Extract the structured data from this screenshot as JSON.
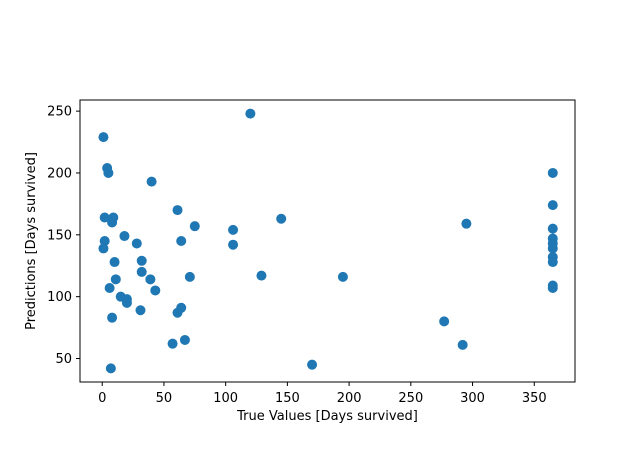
{
  "chart_data": {
    "type": "scatter",
    "xlabel": "True Values [Days survived]",
    "ylabel": "Predictions [Days survived]",
    "xlim": [
      -18,
      383
    ],
    "ylim": [
      31,
      259
    ],
    "xticks": [
      0,
      50,
      100,
      150,
      200,
      250,
      300,
      350
    ],
    "yticks": [
      50,
      100,
      150,
      200,
      250
    ],
    "color": "#1f77b4",
    "points": [
      {
        "x": 1,
        "y": 229
      },
      {
        "x": 4,
        "y": 204
      },
      {
        "x": 5,
        "y": 200
      },
      {
        "x": 2,
        "y": 164
      },
      {
        "x": 8,
        "y": 160
      },
      {
        "x": 9,
        "y": 164
      },
      {
        "x": 2,
        "y": 145
      },
      {
        "x": 1,
        "y": 139
      },
      {
        "x": 10,
        "y": 128
      },
      {
        "x": 11,
        "y": 114
      },
      {
        "x": 6,
        "y": 107
      },
      {
        "x": 15,
        "y": 100
      },
      {
        "x": 20,
        "y": 98
      },
      {
        "x": 20,
        "y": 95
      },
      {
        "x": 8,
        "y": 83
      },
      {
        "x": 7,
        "y": 42
      },
      {
        "x": 18,
        "y": 149
      },
      {
        "x": 28,
        "y": 143
      },
      {
        "x": 32,
        "y": 129
      },
      {
        "x": 32,
        "y": 120
      },
      {
        "x": 39,
        "y": 114
      },
      {
        "x": 43,
        "y": 105
      },
      {
        "x": 31,
        "y": 89
      },
      {
        "x": 40,
        "y": 193
      },
      {
        "x": 61,
        "y": 170
      },
      {
        "x": 64,
        "y": 145
      },
      {
        "x": 75,
        "y": 157
      },
      {
        "x": 71,
        "y": 116
      },
      {
        "x": 64,
        "y": 91
      },
      {
        "x": 61,
        "y": 87
      },
      {
        "x": 57,
        "y": 62
      },
      {
        "x": 67,
        "y": 65
      },
      {
        "x": 120,
        "y": 248
      },
      {
        "x": 106,
        "y": 154
      },
      {
        "x": 106,
        "y": 142
      },
      {
        "x": 129,
        "y": 117
      },
      {
        "x": 145,
        "y": 163
      },
      {
        "x": 170,
        "y": 45
      },
      {
        "x": 195,
        "y": 116
      },
      {
        "x": 277,
        "y": 80
      },
      {
        "x": 292,
        "y": 61
      },
      {
        "x": 295,
        "y": 159
      },
      {
        "x": 365,
        "y": 200
      },
      {
        "x": 365,
        "y": 174
      },
      {
        "x": 365,
        "y": 155
      },
      {
        "x": 365,
        "y": 147
      },
      {
        "x": 365,
        "y": 143
      },
      {
        "x": 365,
        "y": 139
      },
      {
        "x": 365,
        "y": 132
      },
      {
        "x": 365,
        "y": 128
      },
      {
        "x": 365,
        "y": 109
      },
      {
        "x": 365,
        "y": 107
      }
    ]
  }
}
